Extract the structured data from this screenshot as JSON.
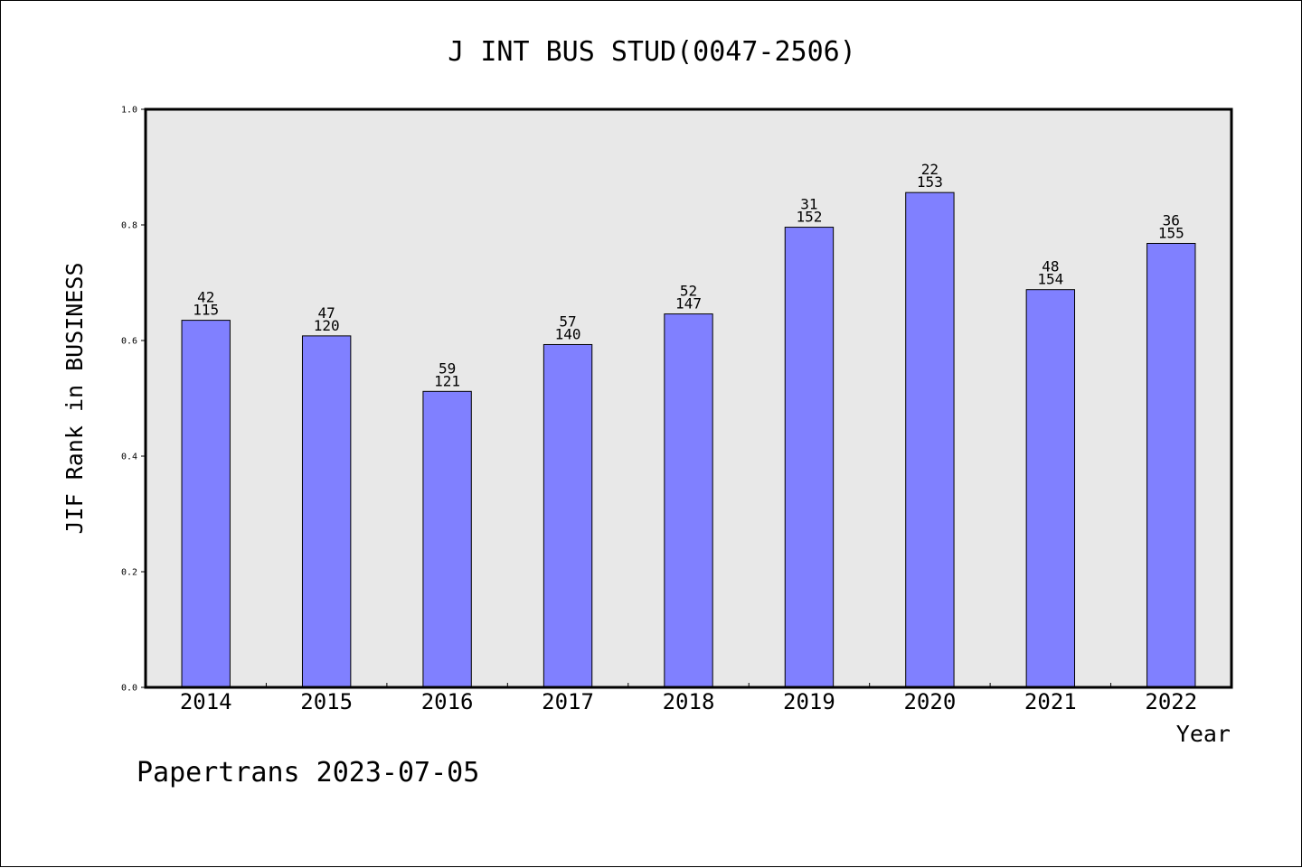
{
  "chart_data": {
    "type": "bar",
    "title": "J INT BUS STUD(0047-2506)",
    "xlabel": "Year",
    "ylabel": "JIF Rank in BUSINESS",
    "ylim": [
      0.0,
      1.0
    ],
    "yticks": [
      "0.0",
      "0.2",
      "0.4",
      "0.6",
      "0.8",
      "1.0"
    ],
    "grid": false,
    "categories": [
      "2014",
      "2015",
      "2016",
      "2017",
      "2018",
      "2019",
      "2020",
      "2021",
      "2022"
    ],
    "values": [
      0.635,
      0.608,
      0.512,
      0.593,
      0.646,
      0.796,
      0.856,
      0.688,
      0.768
    ],
    "rank": [
      "42",
      "47",
      "59",
      "57",
      "52",
      "31",
      "22",
      "48",
      "36"
    ],
    "total": [
      "115",
      "120",
      "121",
      "140",
      "147",
      "152",
      "153",
      "154",
      "155"
    ],
    "colors": {
      "bar": "#8080ff",
      "plot_bg": "#e8e8e8"
    }
  },
  "footer": "Papertrans 2023-07-05"
}
